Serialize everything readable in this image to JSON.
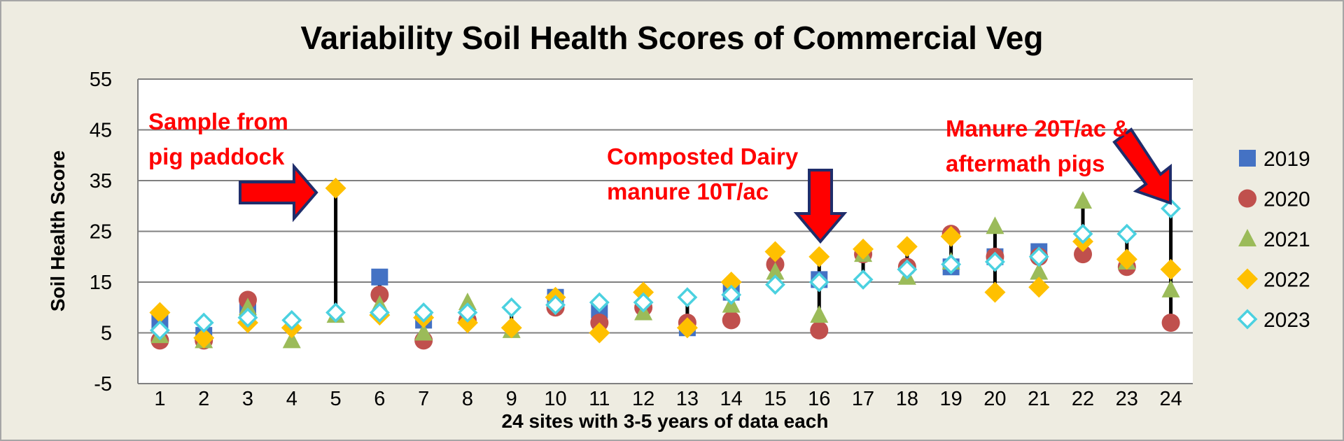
{
  "chart_data": {
    "type": "scatter",
    "title": "Variability Soil Health Scores of Commercial Veg",
    "xlabel": "24 sites with 3-5 years of data each",
    "ylabel": "Soil Health Score",
    "xlim": [
      0.5,
      24.5
    ],
    "ylim": [
      -5,
      55
    ],
    "yticks": [
      55,
      45,
      35,
      25,
      15,
      5,
      -5
    ],
    "x": [
      1,
      2,
      3,
      4,
      5,
      6,
      7,
      8,
      9,
      10,
      11,
      12,
      13,
      14,
      15,
      16,
      17,
      18,
      19,
      20,
      21,
      22,
      23,
      24
    ],
    "xticks": [
      "1",
      "2",
      "3",
      "4",
      "5",
      "6",
      "7",
      "8",
      "9",
      "10",
      "11",
      "12",
      "13",
      "14",
      "15",
      "16",
      "17",
      "18",
      "19",
      "20",
      "21",
      "22",
      "23",
      "24"
    ],
    "grid": true,
    "legend_position": "right",
    "series": [
      {
        "name": "2019",
        "marker": "square",
        "color": "#4472C4",
        "values": [
          7.5,
          4.5,
          10,
          null,
          null,
          16,
          7.5,
          null,
          null,
          12,
          9.5,
          null,
          6,
          13,
          null,
          15.5,
          null,
          null,
          18,
          20,
          21,
          null,
          null,
          null
        ]
      },
      {
        "name": "2020",
        "marker": "circle",
        "color": "#C0504D",
        "values": [
          3.5,
          3.5,
          11.5,
          null,
          null,
          12.5,
          3.5,
          7.5,
          null,
          10,
          7,
          10,
          7,
          7.5,
          18.5,
          5.5,
          20.5,
          18,
          24.5,
          20,
          20,
          20.5,
          18,
          7
        ]
      },
      {
        "name": "2021",
        "marker": "triangle",
        "color": "#9BBB59",
        "values": [
          4.5,
          3.5,
          10,
          3.5,
          8.5,
          10.5,
          5,
          11,
          5.5,
          null,
          null,
          9,
          null,
          10.5,
          17,
          8.5,
          20.5,
          16,
          19,
          26,
          17,
          31,
          19,
          13.5
        ]
      },
      {
        "name": "2022",
        "marker": "diamond",
        "color": "#FFC000",
        "values": [
          9,
          4,
          7,
          6,
          33.5,
          8.5,
          8,
          7,
          6,
          12,
          5,
          13,
          6,
          15,
          21,
          20,
          21.5,
          22,
          24,
          13,
          14,
          23,
          19.5,
          17.5
        ]
      },
      {
        "name": "2023",
        "marker": "diamond-open",
        "color": "#4BD1E0",
        "values": [
          5.5,
          7,
          8,
          7.5,
          9,
          9,
          9,
          9,
          10,
          10.5,
          11,
          11,
          12,
          12.5,
          14.5,
          15,
          15.5,
          17.5,
          18.5,
          19,
          20,
          24.5,
          24.5,
          29.5
        ]
      }
    ],
    "connectors": [
      5,
      16,
      24
    ],
    "annotations": [
      {
        "text_lines": [
          "Sample from",
          "pig paddock"
        ],
        "color": "#FF0000"
      },
      {
        "text_lines": [
          "Composted Dairy",
          "manure 10T/ac"
        ],
        "color": "#FF0000"
      },
      {
        "text_lines": [
          "Manure 20T/ac &",
          "aftermath pigs"
        ],
        "color": "#FF0000"
      }
    ]
  }
}
